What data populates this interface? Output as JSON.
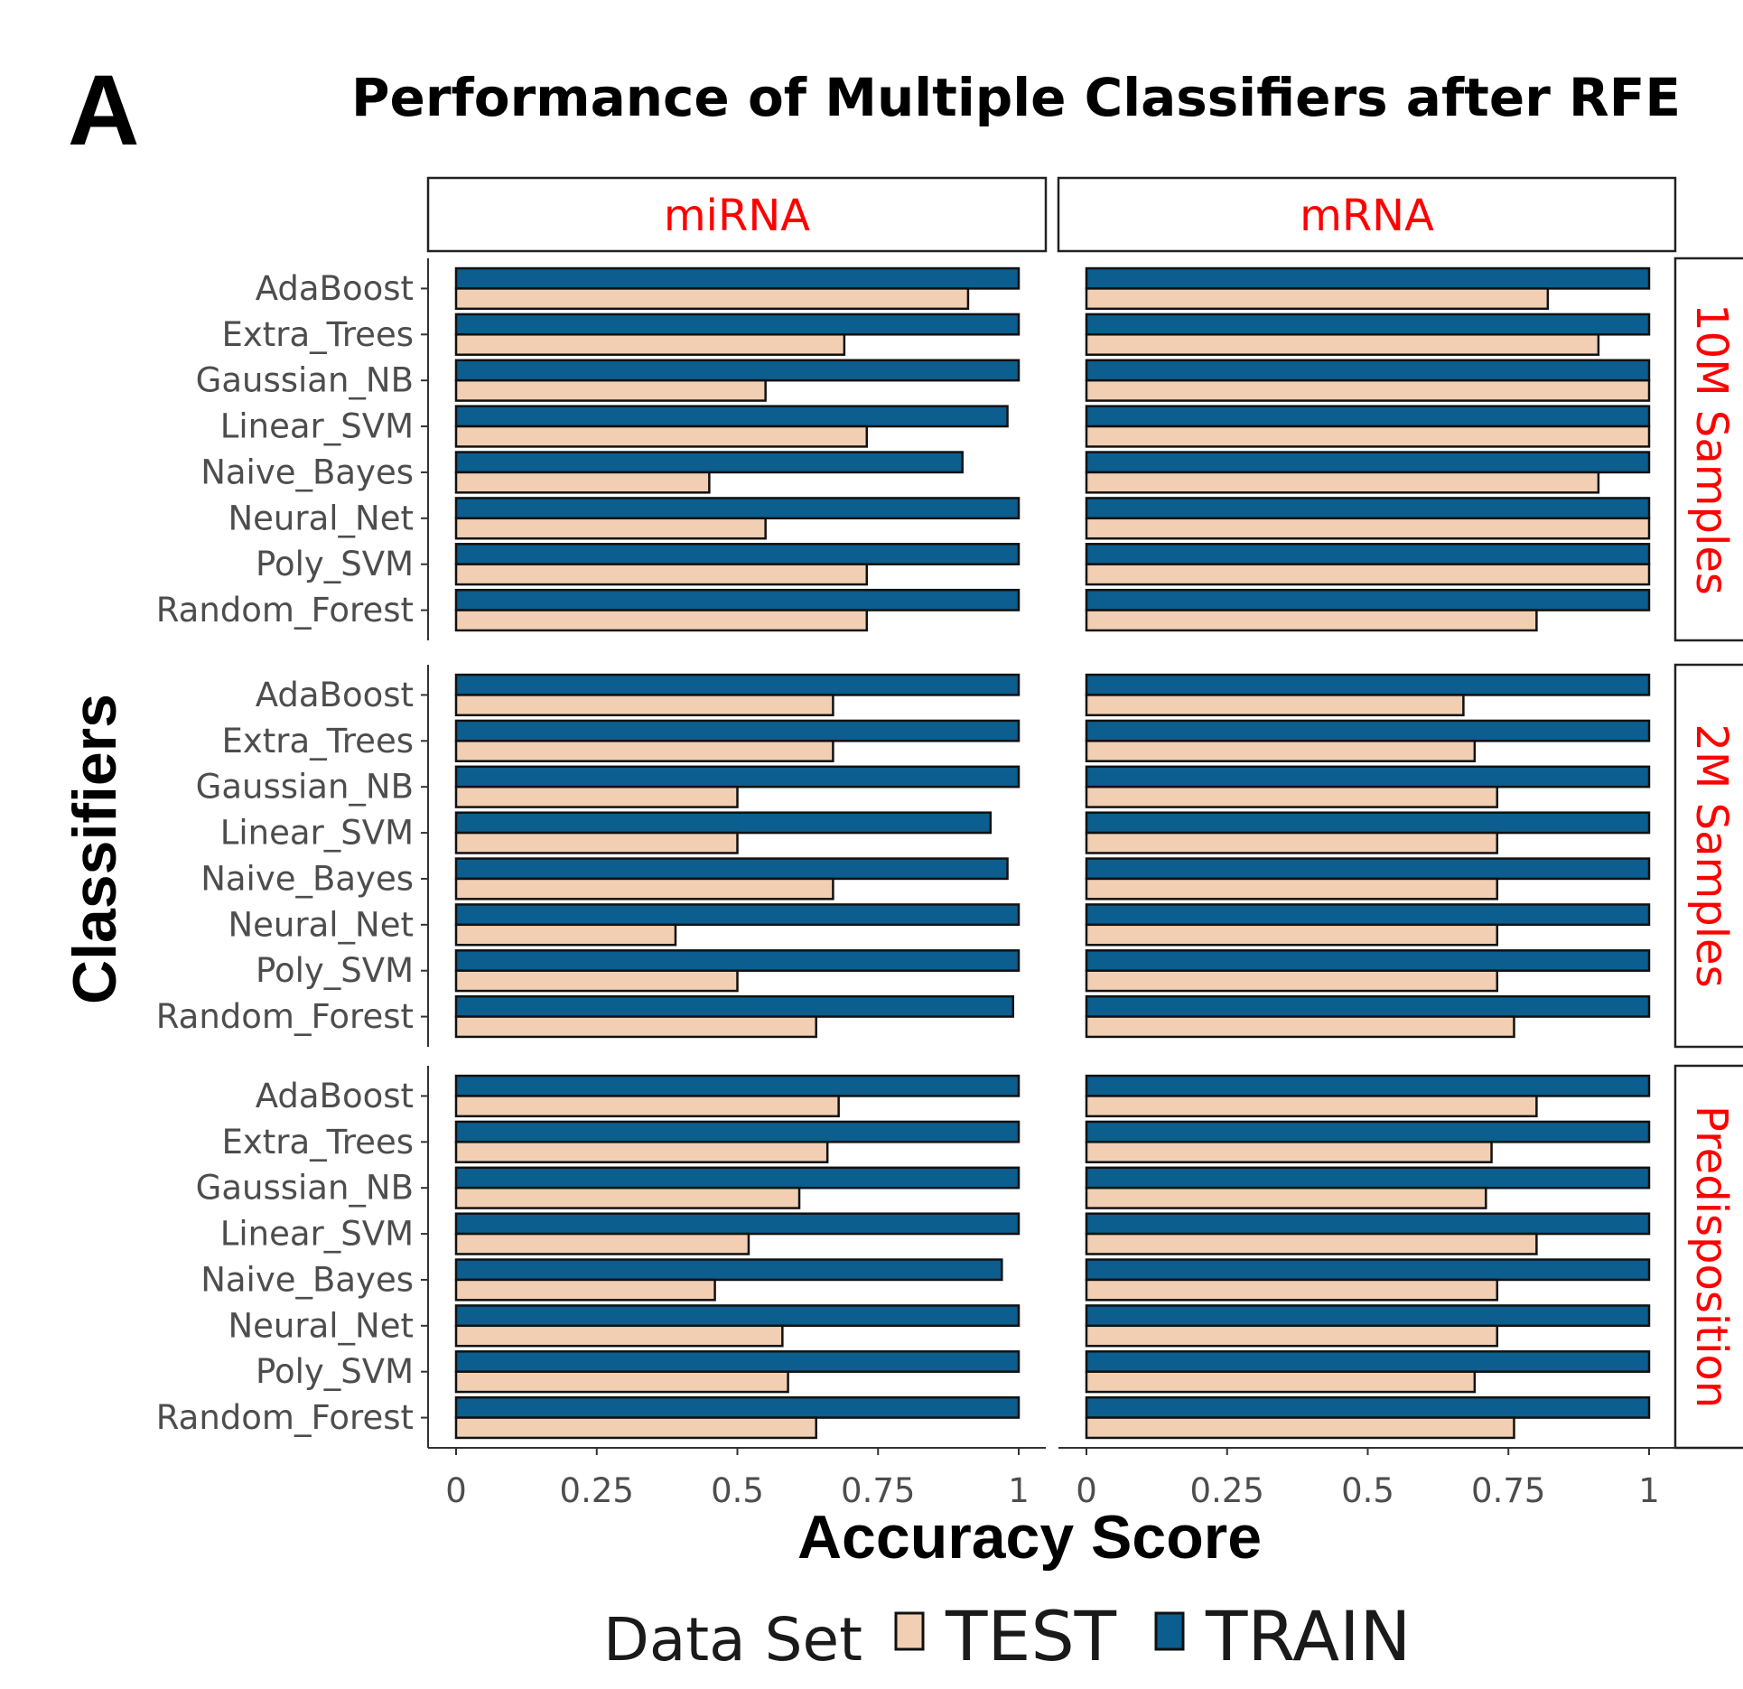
{
  "panel_letter": "A",
  "chart_data": {
    "type": "bar",
    "orientation": "horizontal",
    "title": "Performance of Multiple Classifiers after RFE",
    "xlabel": "Accuracy Score",
    "ylabel": "Classifiers",
    "xlim": [
      0,
      1
    ],
    "x_ticks": [
      "0",
      "0.25",
      "0.5",
      "0.75",
      "1"
    ],
    "x_tick_values": [
      0,
      0.25,
      0.5,
      0.75,
      1
    ],
    "columns": [
      "miRNA",
      "mRNA"
    ],
    "rows": [
      "10M Samples",
      "2M Samples",
      "Predisposition"
    ],
    "categories": [
      "AdaBoost",
      "Extra_Trees",
      "Gaussian_NB",
      "Linear_SVM",
      "Naive_Bayes",
      "Neural_Net",
      "Poly_SVM",
      "Random_Forest"
    ],
    "legend": {
      "title": "Data Set",
      "position": "bottom",
      "entries": [
        {
          "name": "TEST",
          "color": "#f2cfb2"
        },
        {
          "name": "TRAIN",
          "color": "#0b5e8e"
        }
      ]
    },
    "grid": false,
    "facets": [
      {
        "column": "miRNA",
        "row": "10M Samples",
        "series": [
          {
            "name": "TRAIN",
            "values": [
              1.0,
              1.0,
              1.0,
              0.98,
              0.9,
              1.0,
              1.0,
              1.0
            ]
          },
          {
            "name": "TEST",
            "values": [
              0.91,
              0.69,
              0.55,
              0.73,
              0.45,
              0.55,
              0.73,
              0.73
            ]
          }
        ]
      },
      {
        "column": "mRNA",
        "row": "10M Samples",
        "series": [
          {
            "name": "TRAIN",
            "values": [
              1.0,
              1.0,
              1.0,
              1.0,
              1.0,
              1.0,
              1.0,
              1.0
            ]
          },
          {
            "name": "TEST",
            "values": [
              0.82,
              0.91,
              1.0,
              1.0,
              0.91,
              1.0,
              1.0,
              0.8
            ]
          }
        ]
      },
      {
        "column": "miRNA",
        "row": "2M Samples",
        "series": [
          {
            "name": "TRAIN",
            "values": [
              1.0,
              1.0,
              1.0,
              0.95,
              0.98,
              1.0,
              1.0,
              0.99
            ]
          },
          {
            "name": "TEST",
            "values": [
              0.67,
              0.67,
              0.5,
              0.5,
              0.67,
              0.39,
              0.5,
              0.64
            ]
          }
        ]
      },
      {
        "column": "mRNA",
        "row": "2M Samples",
        "series": [
          {
            "name": "TRAIN",
            "values": [
              1.0,
              1.0,
              1.0,
              1.0,
              1.0,
              1.0,
              1.0,
              1.0
            ]
          },
          {
            "name": "TEST",
            "values": [
              0.67,
              0.69,
              0.73,
              0.73,
              0.73,
              0.73,
              0.73,
              0.76
            ]
          }
        ]
      },
      {
        "column": "miRNA",
        "row": "Predisposition",
        "series": [
          {
            "name": "TRAIN",
            "values": [
              1.0,
              1.0,
              1.0,
              1.0,
              0.97,
              1.0,
              1.0,
              1.0
            ]
          },
          {
            "name": "TEST",
            "values": [
              0.68,
              0.66,
              0.61,
              0.52,
              0.46,
              0.58,
              0.59,
              0.64
            ]
          }
        ]
      },
      {
        "column": "mRNA",
        "row": "Predisposition",
        "series": [
          {
            "name": "TRAIN",
            "values": [
              1.0,
              1.0,
              1.0,
              1.0,
              1.0,
              1.0,
              1.0,
              1.0
            ]
          },
          {
            "name": "TEST",
            "values": [
              0.8,
              0.72,
              0.71,
              0.8,
              0.73,
              0.73,
              0.69,
              0.76
            ]
          }
        ]
      }
    ]
  }
}
